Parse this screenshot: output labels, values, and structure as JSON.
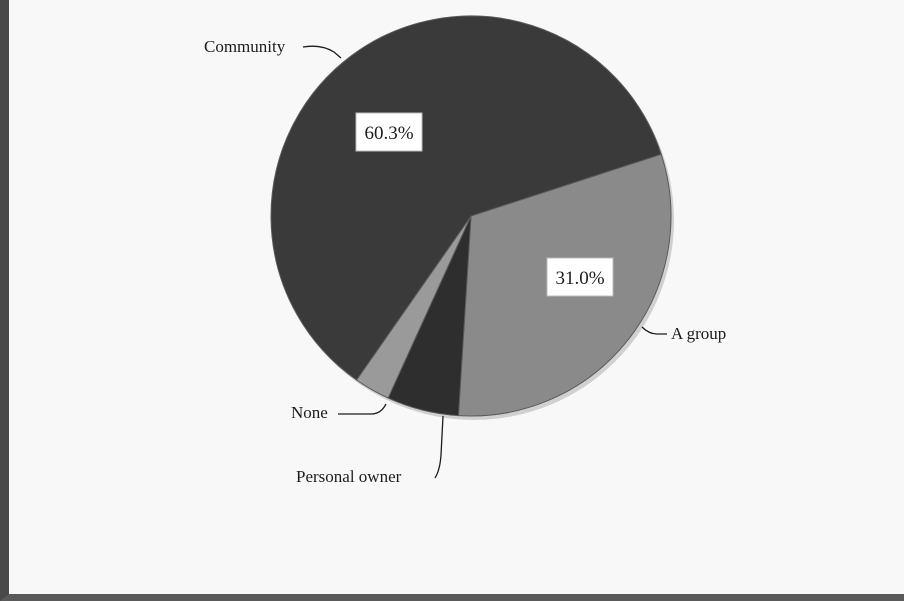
{
  "chart_data": {
    "type": "pie",
    "title": "",
    "slices": [
      {
        "label": "Community",
        "value": 60.3,
        "value_label": "60.3%",
        "color": "#3a3a3a"
      },
      {
        "label": "A group",
        "value": 31.0,
        "value_label": "31.0%",
        "color": "#8a8a8a"
      },
      {
        "label": "Personal owner",
        "value": 5.8,
        "value_label": "",
        "color": "#2e2e2e"
      },
      {
        "label": "None",
        "value": 2.9,
        "value_label": "",
        "color": "#9a9a9a"
      }
    ],
    "legend": "none"
  }
}
